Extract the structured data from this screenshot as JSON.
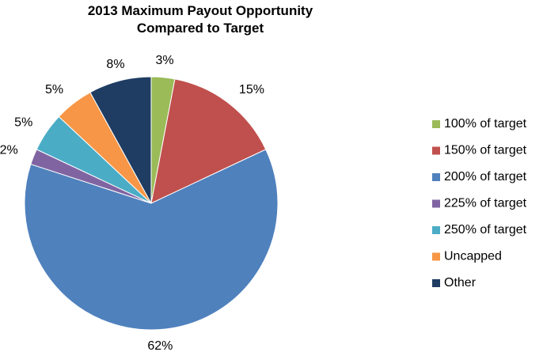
{
  "chart_data": {
    "type": "pie",
    "title": "2013 Maximum Payout Opportunity Compared to Target",
    "categories": [
      "100% of target",
      "150% of target",
      "200% of target",
      "225% of target",
      "250% of target",
      "Uncapped",
      "Other"
    ],
    "values": [
      3,
      15,
      62,
      2,
      5,
      5,
      8
    ],
    "value_labels": [
      "3%",
      "15%",
      "62%",
      "2%",
      "5%",
      "5%",
      "8%"
    ],
    "colors": [
      "#9bbb59",
      "#c0504d",
      "#4f81bd",
      "#8064a2",
      "#4bacc6",
      "#f79646",
      "#1f3d63"
    ],
    "legend": "right"
  }
}
